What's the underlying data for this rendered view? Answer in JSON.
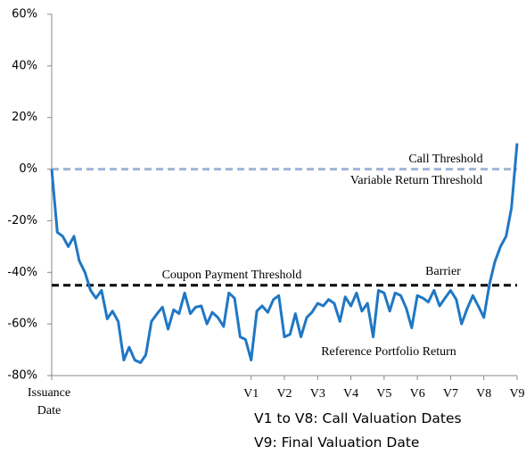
{
  "chart_data": {
    "type": "line",
    "ylim": [
      -80,
      60
    ],
    "yticks": [
      {
        "value": 60,
        "label": "60%"
      },
      {
        "value": 40,
        "label": "40%"
      },
      {
        "value": 20,
        "label": "20%"
      },
      {
        "value": 0,
        "label": "0%"
      },
      {
        "value": -20,
        "label": "-20%"
      },
      {
        "value": -40,
        "label": "-40%"
      },
      {
        "value": -60,
        "label": "-60%"
      },
      {
        "value": -80,
        "label": "-80%"
      }
    ],
    "xlim": [
      0,
      14
    ],
    "xticks": [
      {
        "value": 0,
        "label": "Issuance Date"
      },
      {
        "value": 6,
        "label": "V1"
      },
      {
        "value": 7,
        "label": "V2"
      },
      {
        "value": 8,
        "label": "V3"
      },
      {
        "value": 9,
        "label": "V4"
      },
      {
        "value": 10,
        "label": "V5"
      },
      {
        "value": 11,
        "label": "V6"
      },
      {
        "value": 12,
        "label": "V7"
      },
      {
        "value": 13,
        "label": "V8"
      },
      {
        "value": 14,
        "label": "V9"
      }
    ],
    "x": [
      0,
      0.17,
      0.33,
      0.5,
      0.67,
      0.83,
      1,
      1.17,
      1.33,
      1.5,
      1.67,
      1.83,
      2,
      2.17,
      2.33,
      2.5,
      2.67,
      2.83,
      3,
      3.17,
      3.33,
      3.5,
      3.67,
      3.83,
      4,
      4.17,
      4.33,
      4.5,
      4.67,
      4.83,
      5,
      5.17,
      5.33,
      5.5,
      5.67,
      5.83,
      6,
      6.17,
      6.33,
      6.5,
      6.67,
      6.83,
      7,
      7.17,
      7.33,
      7.5,
      7.67,
      7.83,
      8,
      8.17,
      8.33,
      8.5,
      8.67,
      8.83,
      9,
      9.17,
      9.33,
      9.5,
      9.67,
      9.83,
      10,
      10.17,
      10.33,
      10.5,
      10.67,
      10.83,
      11,
      11.17,
      11.33,
      11.5,
      11.67,
      11.83,
      12,
      12.17,
      12.33,
      12.5,
      12.67,
      12.83,
      13,
      13.17,
      13.33,
      13.5,
      13.67,
      13.83,
      14
    ],
    "series": [
      {
        "name": "Reference Portfolio Return",
        "color": "#1f77c4",
        "values": [
          0,
          -24.5,
          -26,
          -30,
          -26,
          -35.5,
          -40,
          -47,
          -50,
          -47,
          -58,
          -55,
          -59,
          -74,
          -69,
          -74,
          -75,
          -72,
          -59,
          -56,
          -53.5,
          -62,
          -54.5,
          -56,
          -48,
          -56,
          -53.5,
          -53,
          -60,
          -55.5,
          -57.5,
          -61,
          -48,
          -50,
          -65,
          -66,
          -74,
          -55,
          -53,
          -55.5,
          -50.5,
          -49,
          -65,
          -64,
          -56,
          -65,
          -57.5,
          -55.5,
          -52,
          -53,
          -50.5,
          -52,
          -59,
          -49.5,
          -53,
          -48,
          -55,
          -52,
          -65,
          -47,
          -48,
          -55,
          -48,
          -49,
          -54,
          -61.5,
          -49,
          -50,
          -51.5,
          -47,
          -53,
          -50,
          -47,
          -50.5,
          -60,
          -54,
          -49,
          -53,
          -57.5,
          -44.5,
          -36,
          -30,
          -26,
          -15,
          10
        ]
      }
    ],
    "reference_lines": [
      {
        "value": 0,
        "color": "#9fb4d8",
        "labels": [
          "Call Threshold",
          "Variable Return Threshold"
        ]
      },
      {
        "value": -45,
        "color": "#000000",
        "labels": [
          "Coupon Payment Threshold",
          "Barrier"
        ]
      }
    ],
    "notes": [
      "V1 to V8: Call Valuation Dates",
      "V9: Final Valuation Date"
    ]
  }
}
